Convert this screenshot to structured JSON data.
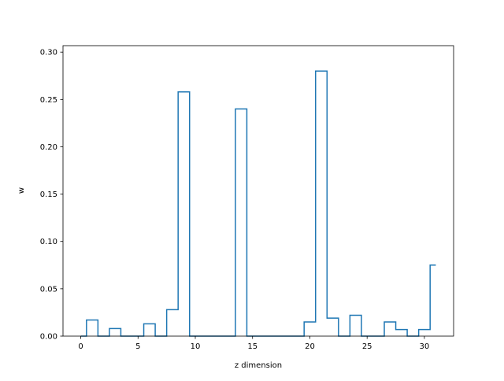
{
  "chart_data": {
    "type": "step",
    "title": "",
    "xlabel": "z dimension",
    "ylabel": "w",
    "xlim": [
      -1.55,
      32.55
    ],
    "ylim": [
      0,
      0.30681
    ],
    "xticks": [
      0,
      5,
      10,
      15,
      20,
      25,
      30
    ],
    "yticks": [
      0.0,
      0.05,
      0.1,
      0.15,
      0.2,
      0.25,
      0.3
    ],
    "xtick_labels": [
      "0",
      "5",
      "10",
      "15",
      "20",
      "25",
      "30"
    ],
    "ytick_labels": [
      "0.00",
      "0.05",
      "0.10",
      "0.15",
      "0.20",
      "0.25",
      "0.30"
    ],
    "grid": false,
    "legend": "none",
    "step_where": "mid",
    "line_color": "#1f77b4",
    "series": [
      {
        "x": [
          0,
          1,
          2,
          3,
          4,
          5,
          6,
          7,
          8,
          9,
          10,
          11,
          12,
          13,
          14,
          15,
          16,
          17,
          18,
          19,
          20,
          21,
          22,
          23,
          24,
          25,
          26,
          27,
          28,
          29,
          30,
          31
        ],
        "values": [
          0.0,
          0.017,
          0.0,
          0.008,
          0.0,
          0.0,
          0.013,
          0.0,
          0.028,
          0.258,
          0.0,
          0.0,
          0.0,
          0.0,
          0.24,
          0.0,
          0.0,
          0.0,
          0.0,
          0.0,
          0.015,
          0.28,
          0.019,
          0.0,
          0.022,
          0.0,
          0.0,
          0.015,
          0.007,
          0.0,
          0.007,
          0.075
        ]
      }
    ]
  }
}
